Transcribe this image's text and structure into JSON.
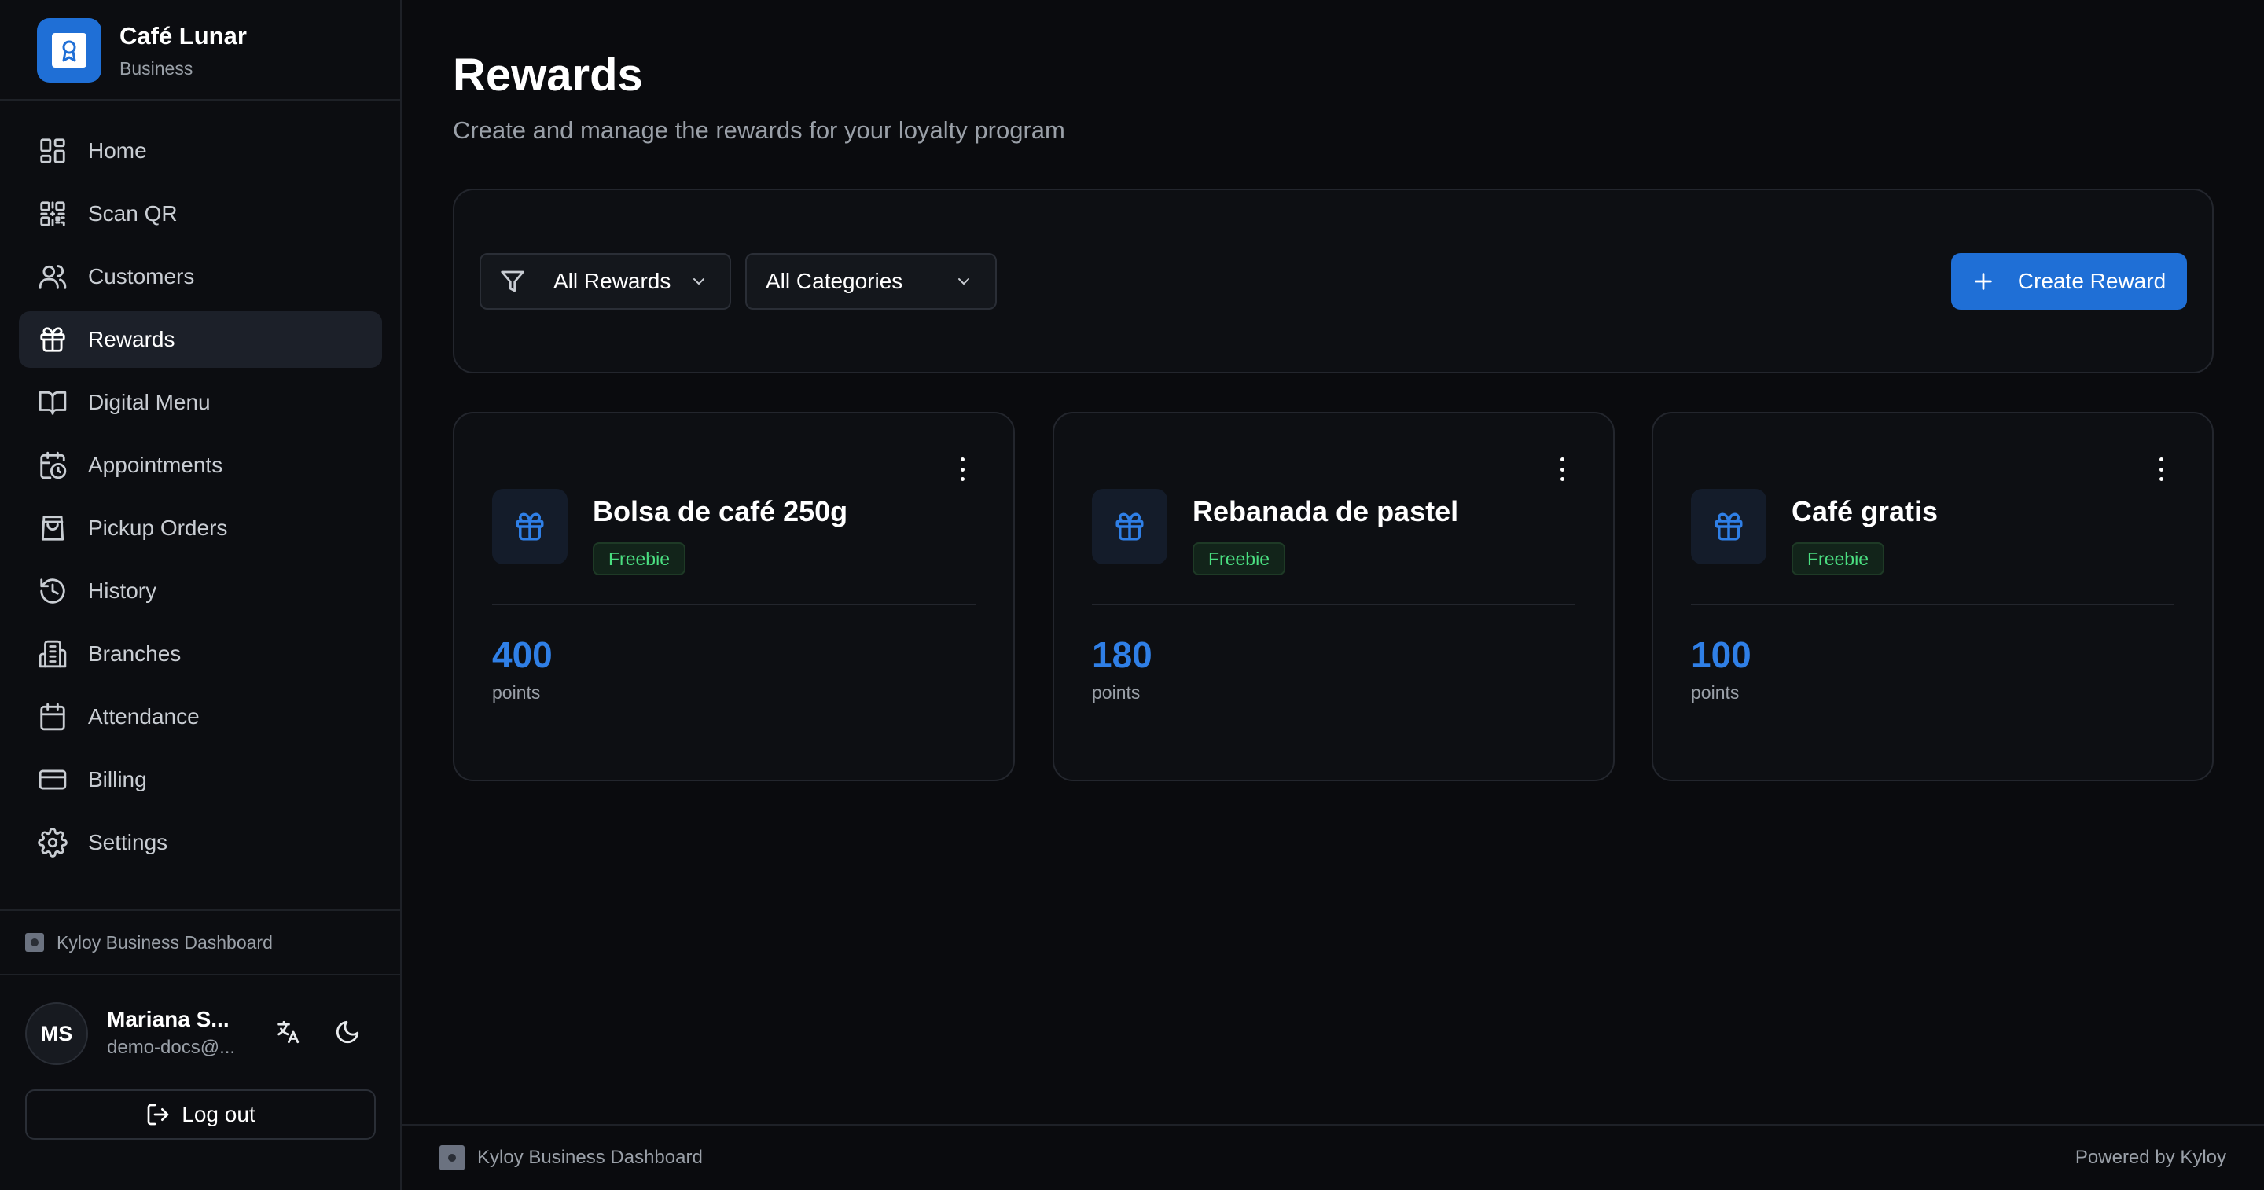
{
  "brand": {
    "name": "Café Lunar",
    "subtitle": "Business"
  },
  "sidebar": {
    "items": [
      {
        "label": "Home",
        "icon": "dashboard-icon",
        "active": false
      },
      {
        "label": "Scan QR",
        "icon": "qr-code-icon",
        "active": false
      },
      {
        "label": "Customers",
        "icon": "users-icon",
        "active": false
      },
      {
        "label": "Rewards",
        "icon": "gift-icon",
        "active": true
      },
      {
        "label": "Digital Menu",
        "icon": "book-icon",
        "active": false
      },
      {
        "label": "Appointments",
        "icon": "calendar-clock-icon",
        "active": false
      },
      {
        "label": "Pickup Orders",
        "icon": "shopping-bag-icon",
        "active": false
      },
      {
        "label": "History",
        "icon": "history-icon",
        "active": false
      },
      {
        "label": "Branches",
        "icon": "building-icon",
        "active": false
      },
      {
        "label": "Attendance",
        "icon": "calendar-icon",
        "active": false
      },
      {
        "label": "Billing",
        "icon": "credit-card-icon",
        "active": false
      },
      {
        "label": "Settings",
        "icon": "gear-icon",
        "active": false
      }
    ],
    "footer_brand": "Kyloy Business Dashboard"
  },
  "user": {
    "initials": "MS",
    "name": "Mariana S...",
    "email": "demo-docs@...",
    "logout_label": "Log out"
  },
  "header": {
    "title": "Rewards",
    "subtitle": "Create and manage the rewards for your loyalty program"
  },
  "toolbar": {
    "filter_rewards": "All Rewards",
    "filter_categories": "All Categories",
    "create_label": "Create Reward"
  },
  "rewards": [
    {
      "name": "Bolsa de café 250g",
      "badge": "Freebie",
      "points": "400",
      "points_label": "points"
    },
    {
      "name": "Rebanada de pastel",
      "badge": "Freebie",
      "points": "180",
      "points_label": "points"
    },
    {
      "name": "Café gratis",
      "badge": "Freebie",
      "points": "100",
      "points_label": "points"
    }
  ],
  "footer": {
    "left": "Kyloy Business Dashboard",
    "right": "Powered by Kyloy"
  },
  "colors": {
    "accent": "#1f6fd6",
    "badge_text": "#4ade80",
    "background": "#0a0b0e"
  }
}
